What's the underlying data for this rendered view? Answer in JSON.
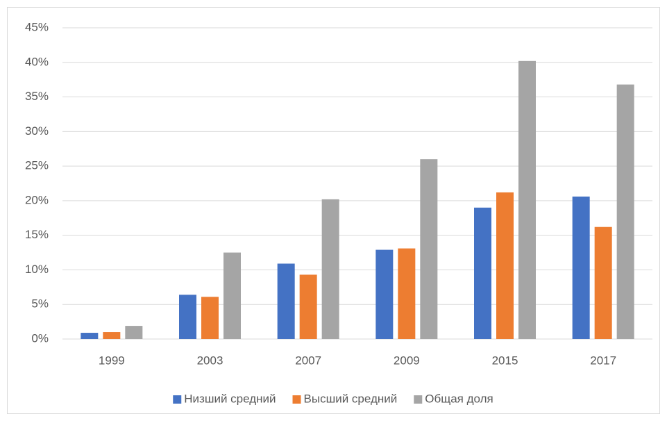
{
  "chart_data": {
    "type": "bar",
    "categories": [
      "1999",
      "2003",
      "2007",
      "2009",
      "2015",
      "2017"
    ],
    "series": [
      {
        "name": "Низший средний",
        "color": "#4472c4",
        "values": [
          0.9,
          6.4,
          10.9,
          12.9,
          19.0,
          20.6
        ]
      },
      {
        "name": "Высший средний",
        "color": "#ed7d31",
        "values": [
          1.0,
          6.1,
          9.3,
          13.1,
          21.2,
          16.2
        ]
      },
      {
        "name": "Общая доля",
        "color": "#a5a5a5",
        "values": [
          1.9,
          12.5,
          20.2,
          26.0,
          40.2,
          36.8
        ]
      }
    ],
    "ylim": [
      0,
      45
    ],
    "yticks": [
      {
        "value": 0,
        "label": "0%"
      },
      {
        "value": 5,
        "label": "5%"
      },
      {
        "value": 10,
        "label": "10%"
      },
      {
        "value": 15,
        "label": "15%"
      },
      {
        "value": 20,
        "label": "20%"
      },
      {
        "value": 25,
        "label": "25%"
      },
      {
        "value": 30,
        "label": "30%"
      },
      {
        "value": 35,
        "label": "35%"
      },
      {
        "value": 40,
        "label": "40%"
      },
      {
        "value": 45,
        "label": "45%"
      }
    ],
    "grid": true,
    "legend": "bottom"
  }
}
